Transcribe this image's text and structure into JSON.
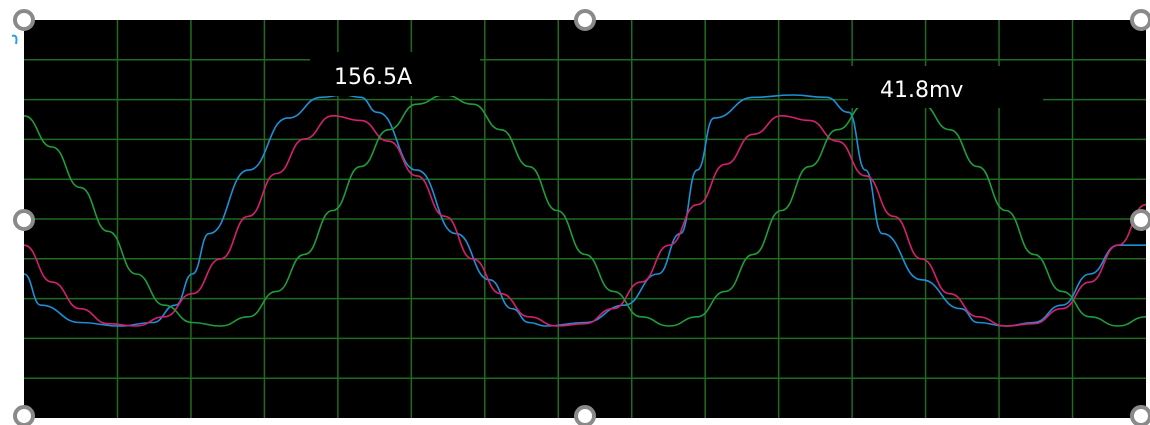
{
  "chart_data": {
    "type": "line",
    "grid": true,
    "background_color": "#000000",
    "grid_color": "#1f6b1f",
    "annotations": [
      "156.5A",
      "41.8mv"
    ],
    "series": [
      {
        "color": "#1e90d6",
        "x": [
          0,
          0.3,
          1,
          1.7,
          2.3,
          2.7,
          3,
          3.3,
          4,
          4.7,
          5.3,
          5.7,
          6,
          6.3,
          7,
          7.7,
          8.3,
          8.7,
          9,
          9.3,
          10,
          10.7,
          11.3,
          11.7,
          12,
          12.3,
          13,
          13.7,
          14.3,
          14.7,
          15,
          15.3,
          16,
          16.7,
          17,
          17.5,
          18,
          18.5,
          19,
          19.5,
          20
        ],
        "values": [
          -0.55,
          -0.82,
          -0.97,
          -1.0,
          -0.97,
          -0.82,
          -0.55,
          -0.2,
          0.35,
          0.8,
          0.98,
          1.0,
          0.98,
          0.85,
          0.35,
          -0.2,
          -0.6,
          -0.85,
          -0.97,
          -1.0,
          -0.97,
          -0.82,
          -0.55,
          -0.2,
          0.35,
          0.8,
          0.98,
          1.0,
          0.98,
          0.85,
          0.35,
          -0.2,
          -0.6,
          -0.85,
          -0.97,
          -1.0,
          -0.97,
          -0.82,
          -0.55,
          -0.3,
          -0.3
        ]
      },
      {
        "color": "#d4206f",
        "x": [
          0,
          0.5,
          1,
          1.5,
          2,
          2.5,
          3,
          3.5,
          4,
          4.5,
          5,
          5.5,
          6,
          6.5,
          7,
          7.5,
          8,
          8.5,
          9,
          9.5,
          10,
          10.5,
          11,
          11.5,
          12,
          12.5,
          13,
          13.5,
          14,
          14.5,
          15,
          15.5,
          16,
          16.5,
          17,
          17.5,
          18,
          18.5,
          19,
          19.5,
          20
        ],
        "values": [
          -0.3,
          -0.62,
          -0.85,
          -0.98,
          -1.0,
          -0.92,
          -0.72,
          -0.42,
          -0.05,
          0.32,
          0.62,
          0.82,
          0.78,
          0.6,
          0.3,
          -0.05,
          -0.42,
          -0.72,
          -0.92,
          -1.0,
          -0.98,
          -0.85,
          -0.62,
          -0.3,
          0.05,
          0.4,
          0.66,
          0.82,
          0.78,
          0.6,
          0.3,
          -0.05,
          -0.42,
          -0.72,
          -0.92,
          -1.0,
          -0.98,
          -0.85,
          -0.62,
          -0.3,
          0.05
        ]
      },
      {
        "color": "#1f9d3a",
        "x": [
          0,
          0.5,
          1,
          1.5,
          2,
          2.5,
          3,
          3.5,
          4,
          4.5,
          5,
          5.5,
          6,
          6.5,
          7,
          7.5,
          8,
          8.5,
          9,
          9.5,
          10,
          10.5,
          11,
          11.5,
          12,
          12.5,
          13,
          13.5,
          14,
          14.5,
          15,
          15.5,
          16,
          16.5,
          17,
          17.5,
          18,
          18.5,
          19,
          19.5,
          20
        ],
        "values": [
          0.82,
          0.55,
          0.2,
          -0.18,
          -0.55,
          -0.82,
          -0.97,
          -1.0,
          -0.92,
          -0.7,
          -0.38,
          0.0,
          0.38,
          0.7,
          0.92,
          1.0,
          0.92,
          0.7,
          0.38,
          0.0,
          -0.38,
          -0.7,
          -0.92,
          -1.0,
          -0.92,
          -0.7,
          -0.38,
          0.0,
          0.38,
          0.7,
          0.92,
          1.0,
          0.92,
          0.7,
          0.38,
          0.0,
          -0.38,
          -0.7,
          -0.92,
          -1.0,
          -0.92
        ]
      }
    ]
  }
}
